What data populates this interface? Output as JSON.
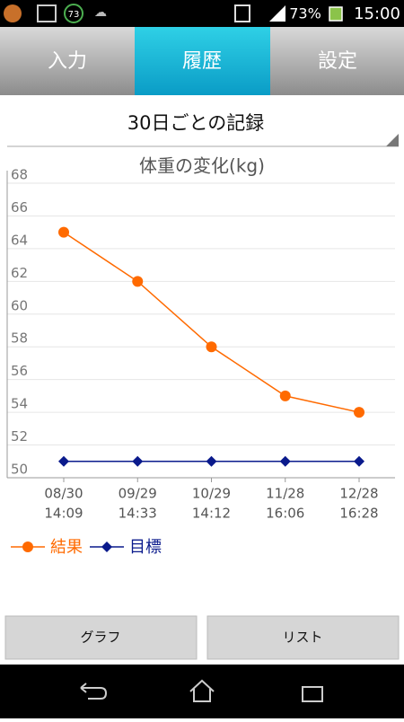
{
  "status_bar": {
    "badge": "73",
    "battery": "73%",
    "time": "15:00"
  },
  "tabs": [
    "入力",
    "履歴",
    "設定"
  ],
  "header": {
    "title": "30日ごとの記録"
  },
  "chart_data": {
    "type": "line",
    "title": "体重の変化(kg)",
    "categories": [
      [
        "08/30",
        "14:09"
      ],
      [
        "09/29",
        "14:33"
      ],
      [
        "10/29",
        "14:12"
      ],
      [
        "11/28",
        "16:06"
      ],
      [
        "12/28",
        "16:28"
      ]
    ],
    "series": [
      {
        "name": "結果",
        "color": "#ff6a00",
        "marker": "circle",
        "values": [
          65,
          62,
          58,
          55,
          54
        ]
      },
      {
        "name": "目標",
        "color": "#0a1a8c",
        "marker": "diamond",
        "values": [
          51,
          51,
          51,
          51,
          51
        ]
      }
    ],
    "ylim": [
      50,
      68
    ],
    "yticks": [
      50,
      52,
      54,
      56,
      58,
      60,
      62,
      64,
      66,
      68
    ],
    "grid": true,
    "legend": "bottom-left"
  },
  "buttons": [
    "グラフ",
    "リスト"
  ]
}
